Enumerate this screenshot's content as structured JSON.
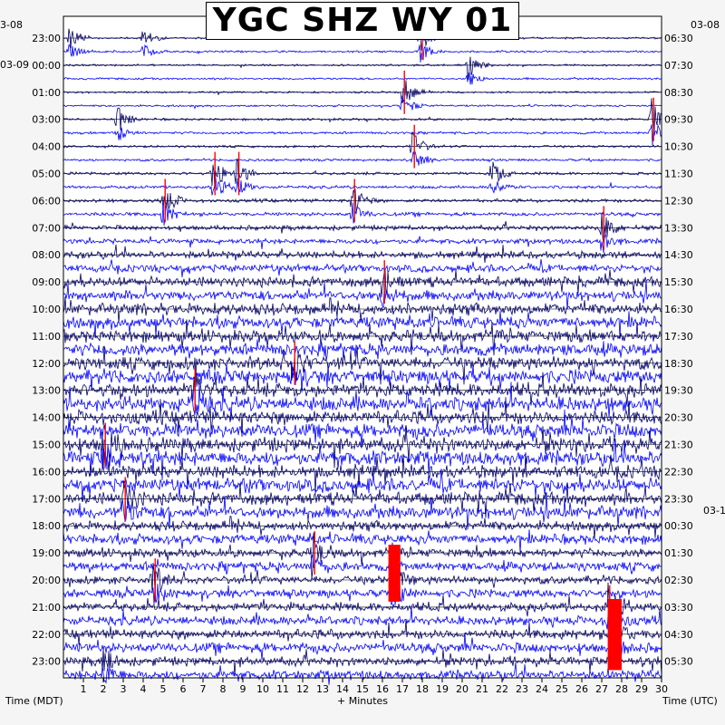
{
  "chart_data": {
    "type": "helicorder",
    "title": "YGC SHZ WY 01",
    "xlabel": "+ Minutes",
    "left_axis_label": "Time (MDT)",
    "right_axis_label": "Time (UTC)",
    "x_ticks": [
      "1",
      "2",
      "3",
      "4",
      "5",
      "6",
      "7",
      "8",
      "9",
      "10",
      "11",
      "12",
      "13",
      "14",
      "15",
      "16",
      "17",
      "18",
      "19",
      "20",
      "21",
      "22",
      "23",
      "24",
      "25",
      "26",
      "27",
      "28",
      "29",
      "30"
    ],
    "xlim": [
      0,
      30
    ],
    "trace_colors": [
      "#000066",
      "#0000ff"
    ],
    "clip_color": "#ff0000",
    "left_date_labels": [
      "3-08",
      "03-09"
    ],
    "right_date_labels": [
      "03-08",
      "03-1"
    ],
    "left_hours": [
      "23:00",
      "00:00",
      "01:00",
      "03:00",
      "04:00",
      "05:00",
      "06:00",
      "07:00",
      "08:00",
      "09:00",
      "10:00",
      "11:00",
      "12:00",
      "13:00",
      "14:00",
      "15:00",
      "16:00",
      "17:00",
      "18:00",
      "19:00",
      "20:00",
      "21:00",
      "22:00",
      "23:00"
    ],
    "right_hours": [
      "06:30",
      "07:30",
      "08:30",
      "09:30",
      "10:30",
      "11:30",
      "12:30",
      "13:30",
      "14:30",
      "15:30",
      "16:30",
      "17:30",
      "18:30",
      "19:30",
      "20:30",
      "21:30",
      "22:30",
      "23:30",
      "00:30",
      "01:30",
      "02:30",
      "03:30",
      "04:30",
      "05:30"
    ],
    "traces_per_hour": 2,
    "activity_by_hour": [
      0.12,
      0.12,
      0.12,
      0.15,
      0.15,
      0.18,
      0.22,
      0.3,
      0.45,
      0.6,
      0.7,
      0.75,
      0.8,
      0.85,
      0.85,
      0.85,
      0.8,
      0.75,
      0.6,
      0.55,
      0.5,
      0.55,
      0.6,
      0.55
    ],
    "events": [
      {
        "hour": 0,
        "minute": 0.3,
        "amp": 1.8
      },
      {
        "hour": 0,
        "minute": 4,
        "amp": 1.4
      },
      {
        "hour": 0,
        "minute": 17.9,
        "amp": 2.2
      },
      {
        "hour": 1,
        "minute": 20.3,
        "amp": 2.0
      },
      {
        "hour": 2,
        "minute": 17,
        "amp": 2.5
      },
      {
        "hour": 3,
        "minute": 2.7,
        "amp": 2.0
      },
      {
        "hour": 3,
        "minute": 29.5,
        "amp": 3.0
      },
      {
        "hour": 4,
        "minute": 17.5,
        "amp": 2.2
      },
      {
        "hour": 5,
        "minute": 7.5,
        "amp": 2.8
      },
      {
        "hour": 5,
        "minute": 8.7,
        "amp": 2.2
      },
      {
        "hour": 5,
        "minute": 21.5,
        "amp": 2.0
      },
      {
        "hour": 6,
        "minute": 5,
        "amp": 2.5
      },
      {
        "hour": 6,
        "minute": 14.5,
        "amp": 2.2
      },
      {
        "hour": 7,
        "minute": 27,
        "amp": 2.6
      },
      {
        "hour": 9,
        "minute": 16,
        "amp": 2.4
      },
      {
        "hour": 12,
        "minute": 11.5,
        "amp": 2.6
      },
      {
        "hour": 13,
        "minute": 6.5,
        "amp": 2.8
      },
      {
        "hour": 15,
        "minute": 2,
        "amp": 3.0
      },
      {
        "hour": 17,
        "minute": 3,
        "amp": 2.8
      },
      {
        "hour": 19,
        "minute": 12.5,
        "amp": 2.4
      },
      {
        "hour": 20,
        "minute": 16.5,
        "amp": 3.5
      },
      {
        "hour": 20,
        "minute": 4.5,
        "amp": 2.5
      },
      {
        "hour": 21,
        "minute": 27.3,
        "amp": 3.8
      },
      {
        "hour": 22,
        "minute": 27.5,
        "amp": 3.2
      },
      {
        "hour": 23,
        "minute": 2,
        "amp": 2.0
      }
    ],
    "clip_blocks": [
      {
        "hour": 19,
        "minute_start": 16.3,
        "minute_end": 16.9,
        "rows": 4
      },
      {
        "hour": 21,
        "minute_start": 27.3,
        "minute_end": 28.0,
        "rows": 5
      }
    ]
  }
}
